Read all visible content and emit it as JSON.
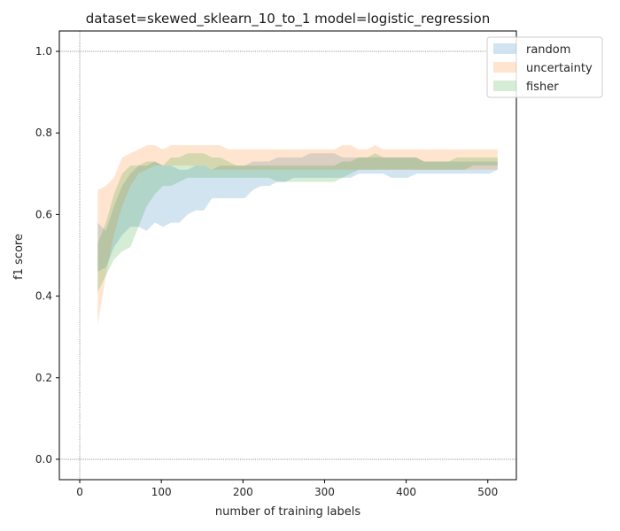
{
  "chart_data": {
    "type": "area",
    "title": "dataset=skewed_sklearn_10_to_1 model=logistic_regression",
    "xlabel": "number of training labels",
    "ylabel": "f1 score",
    "xlim": [
      -25,
      535
    ],
    "ylim": [
      -0.05,
      1.05
    ],
    "xticks": [
      0,
      100,
      200,
      300,
      400,
      500
    ],
    "yticks": [
      0.0,
      0.2,
      0.4,
      0.6,
      0.8,
      1.0
    ],
    "grid": false,
    "reference_lines": {
      "x": [
        0
      ],
      "y": [
        0.0,
        1.0
      ]
    },
    "legend": {
      "placement": "top-right-outside"
    },
    "series": [
      {
        "name": "random",
        "color": "#1f77b4",
        "opacity": 0.2,
        "x": [
          22,
          32,
          42,
          52,
          62,
          72,
          82,
          92,
          102,
          112,
          122,
          132,
          142,
          152,
          162,
          172,
          182,
          192,
          202,
          212,
          222,
          232,
          242,
          252,
          262,
          272,
          282,
          292,
          302,
          312,
          322,
          332,
          342,
          352,
          362,
          372,
          382,
          392,
          402,
          412,
          422,
          432,
          442,
          452,
          462,
          472,
          482,
          492,
          502,
          512
        ],
        "upper": [
          0.58,
          0.56,
          0.62,
          0.67,
          0.7,
          0.72,
          0.72,
          0.73,
          0.72,
          0.72,
          0.71,
          0.71,
          0.72,
          0.72,
          0.71,
          0.72,
          0.72,
          0.72,
          0.72,
          0.73,
          0.73,
          0.73,
          0.74,
          0.74,
          0.74,
          0.74,
          0.75,
          0.75,
          0.75,
          0.75,
          0.74,
          0.74,
          0.74,
          0.74,
          0.74,
          0.74,
          0.74,
          0.74,
          0.74,
          0.74,
          0.73,
          0.73,
          0.73,
          0.73,
          0.73,
          0.73,
          0.73,
          0.73,
          0.73,
          0.73
        ],
        "lower": [
          0.46,
          0.47,
          0.52,
          0.55,
          0.57,
          0.57,
          0.56,
          0.58,
          0.57,
          0.58,
          0.58,
          0.6,
          0.61,
          0.61,
          0.64,
          0.64,
          0.64,
          0.64,
          0.64,
          0.66,
          0.67,
          0.67,
          0.68,
          0.68,
          0.69,
          0.69,
          0.69,
          0.69,
          0.69,
          0.69,
          0.69,
          0.69,
          0.7,
          0.7,
          0.7,
          0.7,
          0.69,
          0.69,
          0.69,
          0.7,
          0.7,
          0.7,
          0.7,
          0.7,
          0.7,
          0.7,
          0.7,
          0.7,
          0.7,
          0.71
        ]
      },
      {
        "name": "uncertainty",
        "color": "#ff7f0e",
        "opacity": 0.2,
        "x": [
          22,
          32,
          42,
          52,
          62,
          72,
          82,
          92,
          102,
          112,
          122,
          132,
          142,
          152,
          162,
          172,
          182,
          192,
          202,
          212,
          222,
          232,
          242,
          252,
          262,
          272,
          282,
          292,
          302,
          312,
          322,
          332,
          342,
          352,
          362,
          372,
          382,
          392,
          402,
          412,
          422,
          432,
          442,
          452,
          462,
          472,
          482,
          492,
          502,
          512
        ],
        "upper": [
          0.66,
          0.67,
          0.69,
          0.74,
          0.75,
          0.76,
          0.77,
          0.77,
          0.76,
          0.77,
          0.77,
          0.77,
          0.77,
          0.77,
          0.77,
          0.77,
          0.76,
          0.76,
          0.76,
          0.76,
          0.76,
          0.76,
          0.76,
          0.76,
          0.76,
          0.76,
          0.76,
          0.76,
          0.76,
          0.76,
          0.77,
          0.77,
          0.76,
          0.76,
          0.77,
          0.76,
          0.76,
          0.76,
          0.76,
          0.76,
          0.76,
          0.76,
          0.76,
          0.76,
          0.76,
          0.76,
          0.76,
          0.76,
          0.76,
          0.76
        ],
        "lower": [
          0.33,
          0.45,
          0.55,
          0.62,
          0.67,
          0.7,
          0.71,
          0.72,
          0.72,
          0.72,
          0.72,
          0.72,
          0.72,
          0.72,
          0.71,
          0.71,
          0.71,
          0.71,
          0.71,
          0.71,
          0.71,
          0.71,
          0.71,
          0.71,
          0.71,
          0.71,
          0.71,
          0.71,
          0.71,
          0.71,
          0.71,
          0.71,
          0.71,
          0.71,
          0.71,
          0.71,
          0.71,
          0.71,
          0.71,
          0.71,
          0.71,
          0.71,
          0.71,
          0.71,
          0.71,
          0.71,
          0.71,
          0.71,
          0.71,
          0.71
        ]
      },
      {
        "name": "fisher",
        "color": "#2ca02c",
        "opacity": 0.2,
        "x": [
          22,
          32,
          42,
          52,
          62,
          72,
          82,
          92,
          102,
          112,
          122,
          132,
          142,
          152,
          162,
          172,
          182,
          192,
          202,
          212,
          222,
          232,
          242,
          252,
          262,
          272,
          282,
          292,
          302,
          312,
          322,
          332,
          342,
          352,
          362,
          372,
          382,
          392,
          402,
          412,
          422,
          432,
          442,
          452,
          462,
          472,
          482,
          492,
          502,
          512
        ],
        "upper": [
          0.53,
          0.58,
          0.65,
          0.7,
          0.72,
          0.72,
          0.73,
          0.73,
          0.72,
          0.74,
          0.74,
          0.75,
          0.75,
          0.75,
          0.74,
          0.74,
          0.73,
          0.72,
          0.72,
          0.72,
          0.72,
          0.72,
          0.72,
          0.72,
          0.72,
          0.72,
          0.72,
          0.72,
          0.72,
          0.72,
          0.73,
          0.73,
          0.74,
          0.74,
          0.75,
          0.74,
          0.74,
          0.74,
          0.74,
          0.74,
          0.73,
          0.73,
          0.73,
          0.73,
          0.74,
          0.74,
          0.74,
          0.74,
          0.74,
          0.74
        ],
        "lower": [
          0.41,
          0.45,
          0.49,
          0.51,
          0.52,
          0.57,
          0.62,
          0.65,
          0.67,
          0.67,
          0.68,
          0.69,
          0.69,
          0.69,
          0.69,
          0.69,
          0.69,
          0.69,
          0.69,
          0.69,
          0.69,
          0.69,
          0.68,
          0.68,
          0.68,
          0.68,
          0.68,
          0.68,
          0.68,
          0.68,
          0.69,
          0.7,
          0.71,
          0.71,
          0.71,
          0.71,
          0.71,
          0.71,
          0.71,
          0.71,
          0.71,
          0.71,
          0.71,
          0.71,
          0.71,
          0.71,
          0.72,
          0.72,
          0.72,
          0.72
        ]
      }
    ]
  }
}
